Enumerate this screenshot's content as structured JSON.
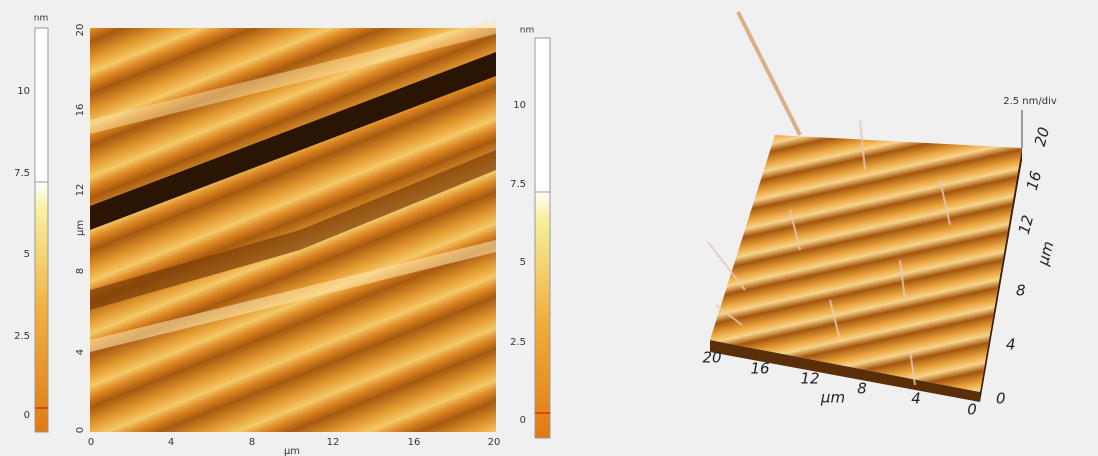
{
  "colorbar_left": {
    "unit": "nm",
    "ticks": [
      "10",
      "7.5",
      "5",
      "2.5",
      "0"
    ]
  },
  "map_2d": {
    "y_label": "µm",
    "y_ticks": [
      "20",
      "16",
      "12",
      "8",
      "4",
      "0"
    ],
    "x_label": "µm",
    "x_ticks": [
      "0",
      "4",
      "8",
      "12",
      "16",
      "20"
    ]
  },
  "colorbar_right": {
    "unit": "nm",
    "ticks": [
      "10",
      "7.5",
      "5",
      "2.5",
      "0"
    ]
  },
  "view_3d": {
    "z_scale": "2.5 nm/div",
    "x_label": "µm",
    "x_ticks": [
      "20",
      "16",
      "12",
      "8",
      "4",
      "0"
    ],
    "y_label": "µm",
    "y_ticks": [
      "0",
      "4",
      "8",
      "12",
      "16",
      "20"
    ]
  }
}
